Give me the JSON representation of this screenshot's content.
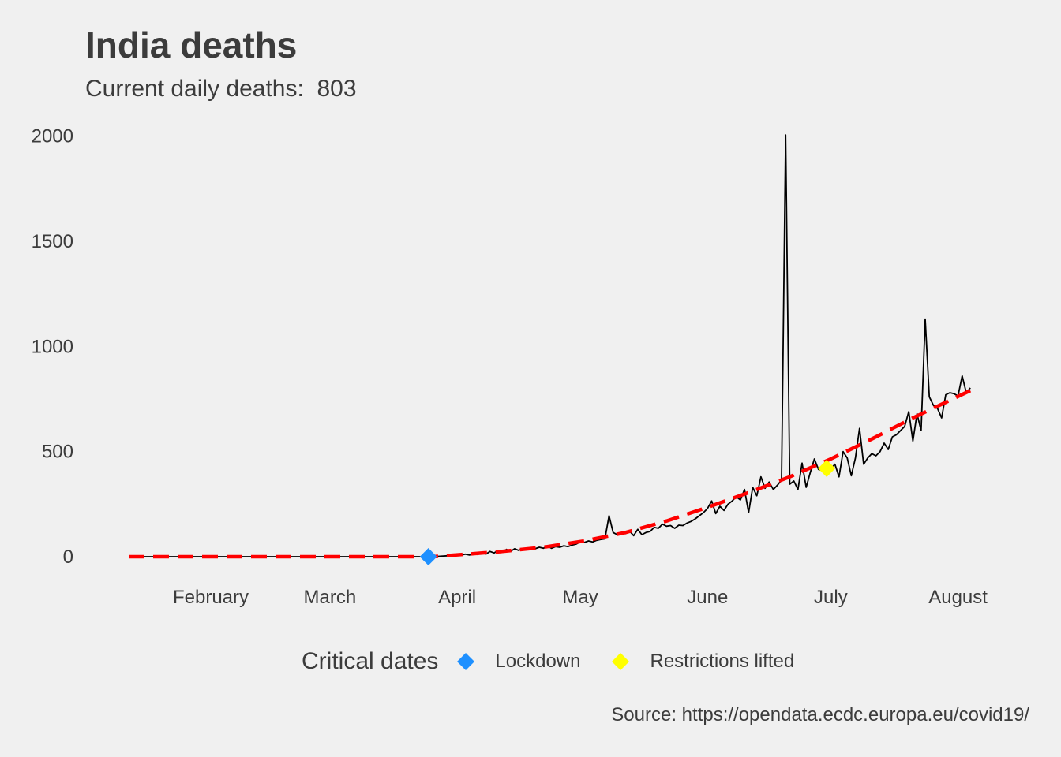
{
  "title": "India deaths",
  "subtitle_prefix": "Current daily deaths:",
  "current_daily_deaths": "803",
  "caption": "Source: https://opendata.ecdc.europa.eu/covid19/",
  "legend": {
    "title": "Critical dates",
    "items": [
      {
        "label": "Lockdown",
        "color": "#1e90ff",
        "icon": "diamond"
      },
      {
        "label": "Restrictions lifted",
        "color": "#ffff00",
        "icon": "diamond"
      }
    ]
  },
  "colors": {
    "background": "#f0f0f0",
    "series_line": "#000000",
    "trend_line": "#ff0000",
    "text": "#3c3c3c"
  },
  "chart_data": {
    "type": "line",
    "title": "India deaths",
    "subtitle": "Current daily deaths:  803",
    "xlabel": "",
    "ylabel": "",
    "x_tick_labels": [
      "February",
      "March",
      "April",
      "May",
      "June",
      "July",
      "August"
    ],
    "x_tick_dates": [
      "2020-02-01",
      "2020-03-01",
      "2020-04-01",
      "2020-05-01",
      "2020-06-01",
      "2020-07-01",
      "2020-08-01"
    ],
    "y_ticks": [
      0,
      500,
      1000,
      1500,
      2000
    ],
    "xlim": [
      "2020-01-12",
      "2020-08-08"
    ],
    "ylim": [
      -60,
      2040
    ],
    "grid": false,
    "legend_position": "bottom",
    "series": [
      {
        "name": "Daily deaths",
        "style": "solid-black",
        "points": [
          [
            "2020-01-12",
            0
          ],
          [
            "2020-03-26",
            0
          ],
          [
            "2020-03-30",
            5
          ],
          [
            "2020-04-02",
            8
          ],
          [
            "2020-04-03",
            12
          ],
          [
            "2020-04-04",
            8
          ],
          [
            "2020-04-05",
            15
          ],
          [
            "2020-04-06",
            10
          ],
          [
            "2020-04-07",
            20
          ],
          [
            "2020-04-08",
            12
          ],
          [
            "2020-04-09",
            25
          ],
          [
            "2020-04-10",
            18
          ],
          [
            "2020-04-11",
            30
          ],
          [
            "2020-04-12",
            22
          ],
          [
            "2020-04-13",
            35
          ],
          [
            "2020-04-14",
            25
          ],
          [
            "2020-04-15",
            38
          ],
          [
            "2020-04-16",
            30
          ],
          [
            "2020-04-17",
            40
          ],
          [
            "2020-04-18",
            35
          ],
          [
            "2020-04-19",
            42
          ],
          [
            "2020-04-20",
            38
          ],
          [
            "2020-04-21",
            45
          ],
          [
            "2020-04-22",
            40
          ],
          [
            "2020-04-23",
            50
          ],
          [
            "2020-04-24",
            40
          ],
          [
            "2020-04-25",
            48
          ],
          [
            "2020-04-26",
            45
          ],
          [
            "2020-04-27",
            52
          ],
          [
            "2020-04-28",
            48
          ],
          [
            "2020-04-29",
            55
          ],
          [
            "2020-04-30",
            60
          ],
          [
            "2020-05-01",
            70
          ],
          [
            "2020-05-02",
            68
          ],
          [
            "2020-05-03",
            75
          ],
          [
            "2020-05-04",
            70
          ],
          [
            "2020-05-05",
            78
          ],
          [
            "2020-05-06",
            82
          ],
          [
            "2020-05-07",
            85
          ],
          [
            "2020-05-08",
            195
          ],
          [
            "2020-05-09",
            115
          ],
          [
            "2020-05-10",
            105
          ],
          [
            "2020-05-11",
            115
          ],
          [
            "2020-05-12",
            110
          ],
          [
            "2020-05-13",
            122
          ],
          [
            "2020-05-14",
            100
          ],
          [
            "2020-05-15",
            130
          ],
          [
            "2020-05-16",
            105
          ],
          [
            "2020-05-17",
            115
          ],
          [
            "2020-05-18",
            120
          ],
          [
            "2020-05-19",
            140
          ],
          [
            "2020-05-20",
            135
          ],
          [
            "2020-05-21",
            155
          ],
          [
            "2020-05-22",
            145
          ],
          [
            "2020-05-23",
            148
          ],
          [
            "2020-05-24",
            135
          ],
          [
            "2020-05-25",
            150
          ],
          [
            "2020-05-26",
            148
          ],
          [
            "2020-05-27",
            160
          ],
          [
            "2020-05-28",
            168
          ],
          [
            "2020-05-29",
            180
          ],
          [
            "2020-05-30",
            195
          ],
          [
            "2020-05-31",
            210
          ],
          [
            "2020-06-01",
            230
          ],
          [
            "2020-06-02",
            265
          ],
          [
            "2020-06-03",
            205
          ],
          [
            "2020-06-04",
            240
          ],
          [
            "2020-06-05",
            220
          ],
          [
            "2020-06-06",
            250
          ],
          [
            "2020-06-07",
            265
          ],
          [
            "2020-06-08",
            285
          ],
          [
            "2020-06-09",
            270
          ],
          [
            "2020-06-10",
            320
          ],
          [
            "2020-06-11",
            210
          ],
          [
            "2020-06-12",
            330
          ],
          [
            "2020-06-13",
            290
          ],
          [
            "2020-06-14",
            380
          ],
          [
            "2020-06-15",
            325
          ],
          [
            "2020-06-16",
            355
          ],
          [
            "2020-06-17",
            320
          ],
          [
            "2020-06-18",
            340
          ],
          [
            "2020-06-19",
            365
          ],
          [
            "2020-06-20",
            2006
          ],
          [
            "2020-06-21",
            345
          ],
          [
            "2020-06-22",
            360
          ],
          [
            "2020-06-23",
            320
          ],
          [
            "2020-06-24",
            445
          ],
          [
            "2020-06-25",
            330
          ],
          [
            "2020-06-26",
            400
          ],
          [
            "2020-06-27",
            465
          ],
          [
            "2020-06-28",
            415
          ],
          [
            "2020-06-29",
            410
          ],
          [
            "2020-06-30",
            385
          ],
          [
            "2020-07-01",
            418
          ],
          [
            "2020-07-02",
            440
          ],
          [
            "2020-07-03",
            380
          ],
          [
            "2020-07-04",
            500
          ],
          [
            "2020-07-05",
            470
          ],
          [
            "2020-07-06",
            385
          ],
          [
            "2020-07-07",
            470
          ],
          [
            "2020-07-08",
            610
          ],
          [
            "2020-07-09",
            440
          ],
          [
            "2020-07-10",
            470
          ],
          [
            "2020-07-11",
            490
          ],
          [
            "2020-07-12",
            480
          ],
          [
            "2020-07-13",
            500
          ],
          [
            "2020-07-14",
            540
          ],
          [
            "2020-07-15",
            510
          ],
          [
            "2020-07-16",
            570
          ],
          [
            "2020-07-17",
            580
          ],
          [
            "2020-07-18",
            600
          ],
          [
            "2020-07-19",
            620
          ],
          [
            "2020-07-20",
            690
          ],
          [
            "2020-07-21",
            550
          ],
          [
            "2020-07-22",
            680
          ],
          [
            "2020-07-23",
            600
          ],
          [
            "2020-07-24",
            1130
          ],
          [
            "2020-07-25",
            760
          ],
          [
            "2020-07-26",
            720
          ],
          [
            "2020-07-27",
            705
          ],
          [
            "2020-07-28",
            660
          ],
          [
            "2020-07-29",
            770
          ],
          [
            "2020-07-30",
            780
          ],
          [
            "2020-07-31",
            775
          ],
          [
            "2020-08-01",
            765
          ],
          [
            "2020-08-02",
            860
          ],
          [
            "2020-08-03",
            780
          ],
          [
            "2020-08-04",
            803
          ]
        ]
      },
      {
        "name": "Trend",
        "style": "dashed-red",
        "points": [
          [
            "2020-01-12",
            0
          ],
          [
            "2020-03-26",
            0
          ],
          [
            "2020-04-02",
            10
          ],
          [
            "2020-04-12",
            25
          ],
          [
            "2020-04-22",
            45
          ],
          [
            "2020-05-02",
            75
          ],
          [
            "2020-05-12",
            115
          ],
          [
            "2020-05-22",
            170
          ],
          [
            "2020-06-01",
            235
          ],
          [
            "2020-06-11",
            305
          ],
          [
            "2020-06-21",
            380
          ],
          [
            "2020-07-01",
            465
          ],
          [
            "2020-07-11",
            560
          ],
          [
            "2020-07-21",
            660
          ],
          [
            "2020-08-04",
            790
          ]
        ]
      }
    ],
    "markers": [
      {
        "name": "Lockdown",
        "date": "2020-03-25",
        "value": 0,
        "color": "#1e90ff"
      },
      {
        "name": "Restrictions lifted",
        "date": "2020-06-30",
        "value": 420,
        "color": "#ffff00"
      }
    ]
  }
}
